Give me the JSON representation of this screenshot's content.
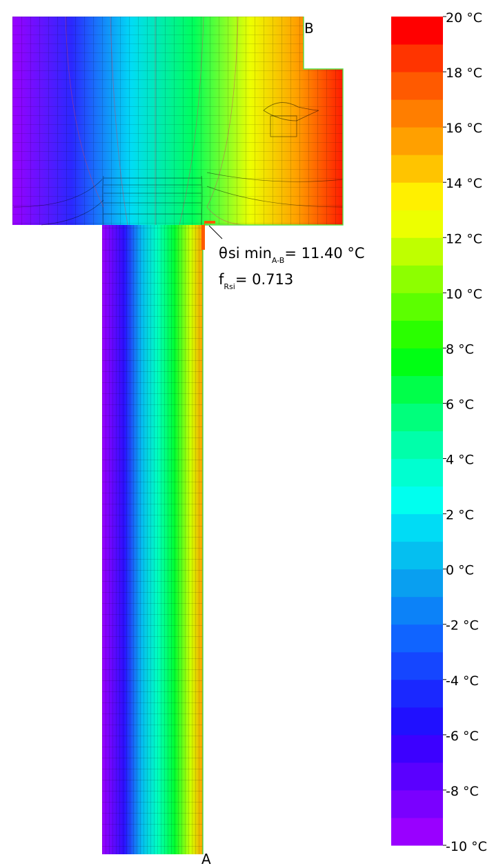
{
  "points": {
    "a": "A",
    "b": "B"
  },
  "annotation": {
    "theta_symbol": "θ",
    "theta_rest": "si min",
    "theta_sub": "A-B",
    "theta_eq": "= 11.40 °C",
    "f_main": "f",
    "f_sub": "Rsi",
    "f_eq": "= 0.713"
  },
  "legend": {
    "bands": [
      "#9900ff",
      "#7a00ff",
      "#5a00ff",
      "#3c00ff",
      "#2010ff",
      "#1a28ff",
      "#1546ff",
      "#1064ff",
      "#0c82f8",
      "#099ff0",
      "#05bff0",
      "#00dcf5",
      "#00ffef",
      "#00ffd0",
      "#00ffaa",
      "#00ff7c",
      "#00ff4a",
      "#00ff14",
      "#2aff00",
      "#5cff00",
      "#8dff00",
      "#bfff00",
      "#edff00",
      "#fff000",
      "#ffc400",
      "#ffa000",
      "#ff7e00",
      "#ff5a00",
      "#ff3400",
      "#ff0000"
    ],
    "ticks": [
      "20 °C",
      "18 °C",
      "16 °C",
      "14 °C",
      "12 °C",
      "10 °C",
      "8 °C",
      "6 °C",
      "4 °C",
      "2 °C",
      "0 °C",
      "-2 °C",
      "-4 °C",
      "-6 °C",
      "-8 °C",
      "-10 °C"
    ]
  },
  "field_colors": {
    "cold": "#9900ff",
    "warm": "#ff0000",
    "boundary": "#55dd44",
    "highlight": "#ff5a00"
  }
}
